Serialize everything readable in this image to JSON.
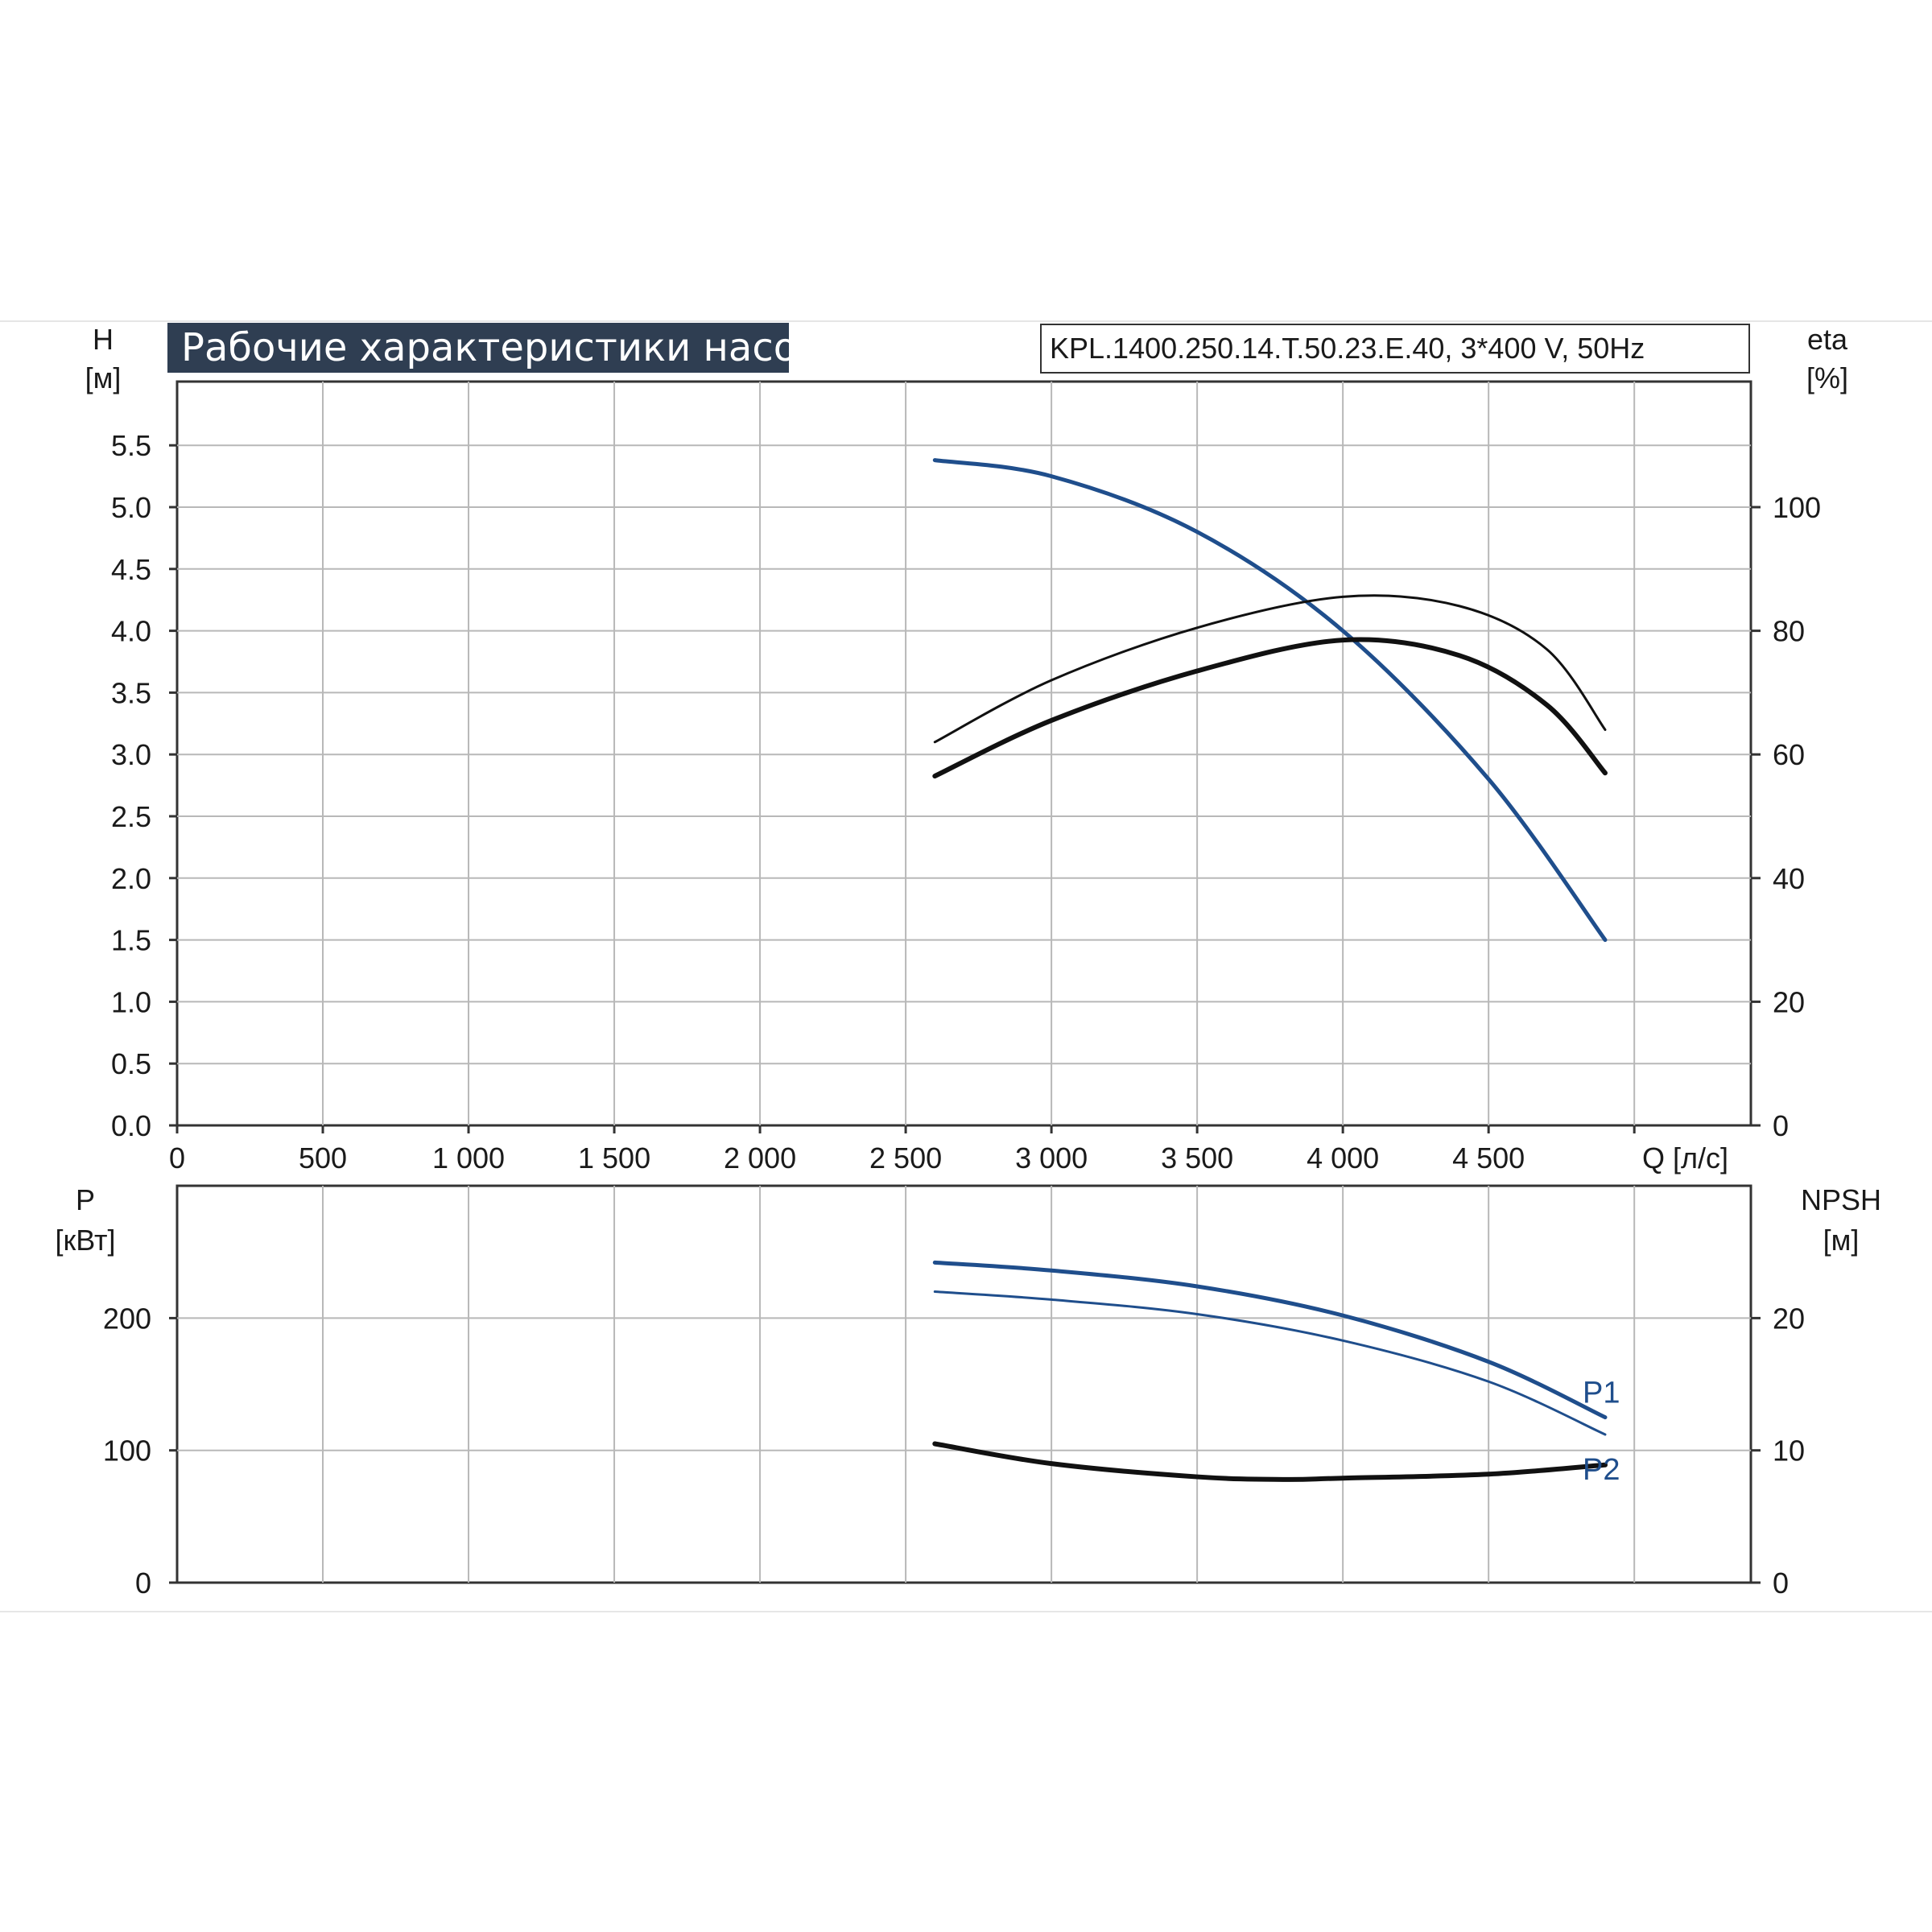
{
  "title": "Рабочие характеристики насоса",
  "model": "KPL.1400.250.14.T.50.23.E.40, 3*400 V, 50Hz",
  "colors": {
    "head": "#1f4e8c",
    "power": "#1f4e8c",
    "efficiency": "#111111",
    "npsh": "#111111",
    "grid": "#b8b8b8",
    "axis": "#333333",
    "title_bg": "#2f3e52"
  },
  "axes": {
    "q_label": "Q [л/с]",
    "h_label": "H",
    "h_unit": "[м]",
    "eta_label": "eta",
    "eta_unit": "[%]",
    "p_label": "P",
    "p_unit": "[кВт]",
    "npsh_label": "NPSH",
    "npsh_unit": "[м]"
  },
  "chart_data": [
    {
      "type": "line",
      "panel": "upper",
      "x_ticks": [
        "0",
        "500",
        "1 000",
        "1 500",
        "2 000",
        "2 500",
        "3 000",
        "3 500",
        "4 000",
        "4 500"
      ],
      "x_tick_values": [
        0,
        500,
        1000,
        1500,
        2000,
        2500,
        3000,
        3500,
        4000,
        4500
      ],
      "xlim": [
        0,
        5400
      ],
      "ylim_left": [
        0,
        5.5
      ],
      "y_ticks_left": [
        "0.0",
        "0.5",
        "1.0",
        "1.5",
        "2.0",
        "2.5",
        "3.0",
        "3.5",
        "4.0",
        "4.5",
        "5.0",
        "5.5"
      ],
      "y_tick_values_left": [
        0,
        0.5,
        1.0,
        1.5,
        2.0,
        2.5,
        3.0,
        3.5,
        4.0,
        4.5,
        5.0,
        5.5
      ],
      "y_ticks_right": [
        "0",
        "20",
        "40",
        "60",
        "80",
        "100"
      ],
      "y_tick_values_right": [
        0,
        20,
        40,
        60,
        80,
        100
      ],
      "series": [
        {
          "id": "head",
          "axis": "left",
          "width": 5,
          "x": [
            2600,
            3000,
            3500,
            4000,
            4500,
            4900
          ],
          "y": [
            5.38,
            5.25,
            4.8,
            4.0,
            2.8,
            1.5
          ]
        },
        {
          "id": "eta1",
          "axis": "right",
          "width": 3,
          "x": [
            2600,
            3000,
            3500,
            4000,
            4400,
            4700,
            4900
          ],
          "y": [
            62,
            72,
            80.5,
            85.5,
            84,
            77,
            64
          ]
        },
        {
          "id": "eta2",
          "axis": "right",
          "width": 6,
          "x": [
            2600,
            3000,
            3500,
            4000,
            4400,
            4700,
            4900
          ],
          "y": [
            56.5,
            65.5,
            73.5,
            78.5,
            76,
            68,
            57
          ]
        }
      ]
    },
    {
      "type": "line",
      "panel": "lower",
      "xlim": [
        0,
        5400
      ],
      "ylim_left": [
        0,
        300
      ],
      "y_ticks_left": [
        "0",
        "100",
        "200"
      ],
      "y_tick_values_left": [
        0,
        100,
        200
      ],
      "y_ticks_right": [
        "0",
        "10",
        "20"
      ],
      "y_tick_values_right": [
        0,
        10,
        20
      ],
      "series": [
        {
          "id": "p1",
          "name": "P1",
          "axis": "left",
          "width": 5,
          "x": [
            2600,
            3000,
            3500,
            4000,
            4500,
            4900
          ],
          "y": [
            242,
            236,
            224,
            202,
            167,
            125
          ]
        },
        {
          "id": "p2",
          "name": "P2",
          "axis": "left",
          "width": 3,
          "x": [
            2600,
            3000,
            3500,
            4000,
            4500,
            4900
          ],
          "y": [
            220,
            214,
            203,
            183,
            152,
            112
          ]
        },
        {
          "id": "npsh",
          "axis": "right",
          "width": 6,
          "x": [
            2600,
            3000,
            3500,
            3800,
            4000,
            4500,
            4900
          ],
          "y": [
            10.5,
            9.0,
            8.0,
            7.8,
            7.9,
            8.2,
            8.9
          ]
        }
      ]
    }
  ]
}
